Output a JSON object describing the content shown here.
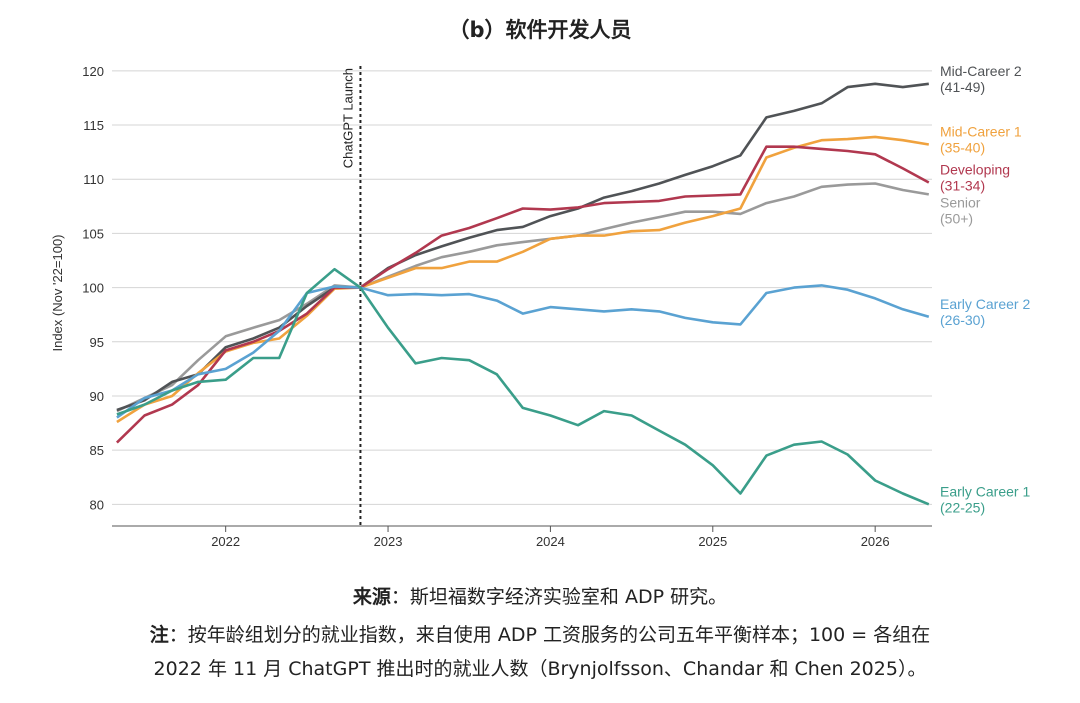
{
  "title": "（b）软件开发人员",
  "footer": {
    "source_label": "来源",
    "source_text": "：斯坦福数字经济实验室和 ADP 研究。",
    "note_label": "注",
    "note_line1": "：按年龄组划分的就业指数，来自使用 ADP 工资服务的公司五年平衡样本；100 = 各组在",
    "note_line2": "2022 年 11 月 ChatGPT 推出时的就业人数（Brynjolfsson、Chandar 和 Chen 2025）。"
  },
  "chart_data": {
    "type": "line",
    "title": "（b）软件开发人员",
    "ylabel": "Index (Nov '22=100)",
    "xlabel": "",
    "ylim": [
      78,
      121
    ],
    "xlim": [
      2021.3,
      2026.35
    ],
    "yticks": [
      80,
      85,
      90,
      95,
      100,
      105,
      110,
      115,
      120
    ],
    "xticks": [
      {
        "value": 2022.0,
        "label": "2022"
      },
      {
        "value": 2023.0,
        "label": "2023"
      },
      {
        "value": 2024.0,
        "label": "2024"
      },
      {
        "value": 2025.0,
        "label": "2025"
      },
      {
        "value": 2026.0,
        "label": "2026"
      }
    ],
    "grid": "horizontal",
    "annotation": {
      "x": 2022.83,
      "label": "ChatGPT Launch"
    },
    "series": [
      {
        "name": "Senior (50+)",
        "label_lines": [
          "Senior",
          "(50+)"
        ],
        "color": "#9a9a9a",
        "x": [
          2021.33,
          2021.5,
          2021.67,
          2021.83,
          2022.0,
          2022.17,
          2022.33,
          2022.5,
          2022.67,
          2022.83,
          2023.0,
          2023.17,
          2023.33,
          2023.5,
          2023.67,
          2023.83,
          2024.0,
          2024.17,
          2024.33,
          2024.5,
          2024.67,
          2024.83,
          2025.0,
          2025.17,
          2025.33,
          2025.5,
          2025.67,
          2025.83,
          2026.0,
          2026.17,
          2026.33
        ],
        "y": [
          88.6,
          89.8,
          91.0,
          93.3,
          95.5,
          96.3,
          97.0,
          98.5,
          100.2,
          100.0,
          101.0,
          102.0,
          102.8,
          103.3,
          103.9,
          104.2,
          104.5,
          104.8,
          105.4,
          106.0,
          106.5,
          107.0,
          107.0,
          106.8,
          107.8,
          108.4,
          109.3,
          109.5,
          109.6,
          109.0,
          108.6
        ]
      },
      {
        "name": "Mid-Career 2 (41-49)",
        "label_lines": [
          "Mid-Career 2",
          "(41-49)"
        ],
        "color": "#505356",
        "x": [
          2021.33,
          2021.5,
          2021.67,
          2021.83,
          2022.0,
          2022.17,
          2022.33,
          2022.5,
          2022.67,
          2022.83,
          2023.0,
          2023.17,
          2023.33,
          2023.5,
          2023.67,
          2023.83,
          2024.0,
          2024.17,
          2024.33,
          2024.5,
          2024.67,
          2024.83,
          2025.0,
          2025.17,
          2025.33,
          2025.5,
          2025.67,
          2025.83,
          2026.0,
          2026.17,
          2026.33
        ],
        "y": [
          88.7,
          89.6,
          91.3,
          92.0,
          94.5,
          95.3,
          96.3,
          98.3,
          100.0,
          100.0,
          101.8,
          103.0,
          103.8,
          104.6,
          105.3,
          105.6,
          106.6,
          107.3,
          108.3,
          108.9,
          109.6,
          110.4,
          111.2,
          112.2,
          115.7,
          116.3,
          117.0,
          118.5,
          118.8,
          118.5,
          118.8
        ]
      },
      {
        "name": "Mid-Career 1 (35-40)",
        "label_lines": [
          "Mid-Career 1",
          "(35-40)"
        ],
        "color": "#f0a23e",
        "x": [
          2021.33,
          2021.5,
          2021.67,
          2021.83,
          2022.0,
          2022.17,
          2022.33,
          2022.5,
          2022.67,
          2022.83,
          2023.0,
          2023.17,
          2023.33,
          2023.5,
          2023.67,
          2023.83,
          2024.0,
          2024.17,
          2024.33,
          2024.5,
          2024.67,
          2024.83,
          2025.0,
          2025.17,
          2025.33,
          2025.5,
          2025.67,
          2025.83,
          2026.0,
          2026.17,
          2026.33
        ],
        "y": [
          87.6,
          89.2,
          90.0,
          92.1,
          94.1,
          94.9,
          95.3,
          97.4,
          99.9,
          100.0,
          100.9,
          101.8,
          101.8,
          102.4,
          102.4,
          103.3,
          104.5,
          104.8,
          104.8,
          105.2,
          105.3,
          106.0,
          106.6,
          107.3,
          112.0,
          112.9,
          113.6,
          113.7,
          113.9,
          113.6,
          113.2
        ]
      },
      {
        "name": "Developing (31-34)",
        "label_lines": [
          "Developing",
          "(31-34)"
        ],
        "color": "#b1384f",
        "x": [
          2021.33,
          2021.5,
          2021.67,
          2021.83,
          2022.0,
          2022.17,
          2022.33,
          2022.5,
          2022.67,
          2022.83,
          2023.0,
          2023.17,
          2023.33,
          2023.5,
          2023.67,
          2023.83,
          2024.0,
          2024.17,
          2024.33,
          2024.5,
          2024.67,
          2024.83,
          2025.0,
          2025.17,
          2025.33,
          2025.5,
          2025.67,
          2025.83,
          2026.0,
          2026.17,
          2026.33
        ],
        "y": [
          85.7,
          88.2,
          89.2,
          91.0,
          94.2,
          95.0,
          96.0,
          97.6,
          100.0,
          100.0,
          101.7,
          103.2,
          104.8,
          105.5,
          106.4,
          107.3,
          107.2,
          107.4,
          107.8,
          107.9,
          108.0,
          108.4,
          108.5,
          108.6,
          113.0,
          113.0,
          112.8,
          112.6,
          112.3,
          111.0,
          109.7
        ]
      },
      {
        "name": "Early Career 2 (26-30)",
        "label_lines": [
          "Early Career 2",
          "(26-30)"
        ],
        "color": "#5aa2d2",
        "x": [
          2021.33,
          2021.5,
          2021.67,
          2021.83,
          2022.0,
          2022.17,
          2022.33,
          2022.5,
          2022.67,
          2022.83,
          2023.0,
          2023.17,
          2023.33,
          2023.5,
          2023.67,
          2023.83,
          2024.0,
          2024.17,
          2024.33,
          2024.5,
          2024.67,
          2024.83,
          2025.0,
          2025.17,
          2025.33,
          2025.5,
          2025.67,
          2025.83,
          2026.0,
          2026.17,
          2026.33
        ],
        "y": [
          88.0,
          89.8,
          90.5,
          92.0,
          92.5,
          94.0,
          96.0,
          99.5,
          100.1,
          100.0,
          99.3,
          99.4,
          99.3,
          99.4,
          98.8,
          97.6,
          98.2,
          98.0,
          97.8,
          98.0,
          97.8,
          97.2,
          96.8,
          96.6,
          99.5,
          100.0,
          100.2,
          99.8,
          99.0,
          98.0,
          97.3
        ]
      },
      {
        "name": "Early Career 1 (22-25)",
        "label_lines": [
          "Early Career 1",
          "(22-25)"
        ],
        "color": "#3a9e8a",
        "x": [
          2021.33,
          2021.5,
          2021.67,
          2021.83,
          2022.0,
          2022.17,
          2022.33,
          2022.5,
          2022.67,
          2022.83,
          2023.0,
          2023.17,
          2023.33,
          2023.5,
          2023.67,
          2023.83,
          2024.0,
          2024.17,
          2024.33,
          2024.5,
          2024.67,
          2024.83,
          2025.0,
          2025.17,
          2025.33,
          2025.5,
          2025.67,
          2025.83,
          2026.0,
          2026.17,
          2026.33
        ],
        "y": [
          88.3,
          89.2,
          90.5,
          91.3,
          91.5,
          93.5,
          93.5,
          99.5,
          101.7,
          100.0,
          96.3,
          93.0,
          93.5,
          93.3,
          92.0,
          88.9,
          88.2,
          87.3,
          88.6,
          88.2,
          86.8,
          85.5,
          83.6,
          81.0,
          84.5,
          85.5,
          85.8,
          84.6,
          82.2,
          81.0,
          80.0
        ]
      }
    ]
  }
}
